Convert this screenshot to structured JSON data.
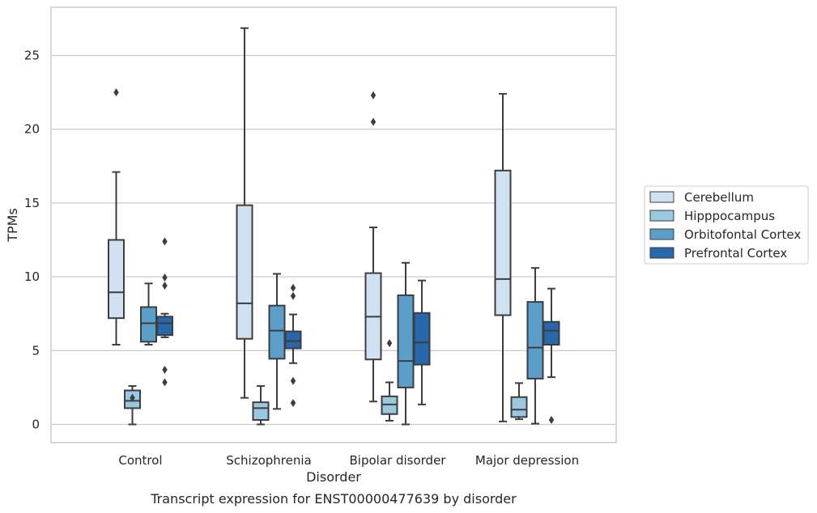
{
  "caption": "Transcript expression for ENST00000477639 by disorder",
  "chart_data": {
    "type": "box",
    "title": "",
    "xlabel": "Disorder",
    "ylabel": "TPMs",
    "ylim": [
      -1.2,
      28
    ],
    "yticks": [
      0,
      5,
      10,
      15,
      20,
      25
    ],
    "grid": "horizontal",
    "legend_position": "right",
    "categories": [
      "Control",
      "Schizophrenia",
      "Bipolar disorder",
      "Major depression"
    ],
    "series": [
      {
        "name": "Cerebellum",
        "color": "#d0e1f2",
        "boxes": [
          {
            "whisker_low": 5.4,
            "q1": 7.2,
            "median": 8.95,
            "q3": 12.5,
            "whisker_high": 17.1,
            "outliers": [
              22.5
            ]
          },
          {
            "whisker_low": 1.8,
            "q1": 5.8,
            "median": 8.2,
            "q3": 14.85,
            "whisker_high": 26.85,
            "outliers": []
          },
          {
            "whisker_low": 1.55,
            "q1": 4.4,
            "median": 7.3,
            "q3": 10.25,
            "whisker_high": 13.35,
            "outliers": [
              20.5,
              22.3
            ]
          },
          {
            "whisker_low": 0.2,
            "q1": 7.4,
            "median": 9.85,
            "q3": 17.2,
            "whisker_high": 22.4,
            "outliers": []
          }
        ]
      },
      {
        "name": "Hipppocampus",
        "color": "#9ac8e0",
        "boxes": [
          {
            "whisker_low": 0.0,
            "q1": 1.1,
            "median": 1.6,
            "q3": 2.3,
            "whisker_high": 2.6,
            "outliers": [
              1.8
            ]
          },
          {
            "whisker_low": 0.0,
            "q1": 0.3,
            "median": 1.1,
            "q3": 1.5,
            "whisker_high": 2.6,
            "outliers": []
          },
          {
            "whisker_low": 0.25,
            "q1": 0.7,
            "median": 1.35,
            "q3": 1.9,
            "whisker_high": 2.85,
            "outliers": [
              5.5
            ]
          },
          {
            "whisker_low": 0.35,
            "q1": 0.5,
            "median": 1.0,
            "q3": 1.85,
            "whisker_high": 2.8,
            "outliers": []
          }
        ]
      },
      {
        "name": "Orbitofontal Cortex",
        "color": "#5a9ec9",
        "boxes": [
          {
            "whisker_low": 5.4,
            "q1": 5.6,
            "median": 6.85,
            "q3": 7.95,
            "whisker_high": 9.55,
            "outliers": []
          },
          {
            "whisker_low": 1.05,
            "q1": 4.45,
            "median": 6.35,
            "q3": 8.05,
            "whisker_high": 10.2,
            "outliers": []
          },
          {
            "whisker_low": 0.0,
            "q1": 2.5,
            "median": 4.3,
            "q3": 8.75,
            "whisker_high": 10.95,
            "outliers": []
          },
          {
            "whisker_low": 0.05,
            "q1": 3.1,
            "median": 5.2,
            "q3": 8.3,
            "whisker_high": 10.6,
            "outliers": []
          }
        ]
      },
      {
        "name": "Prefrontal Cortex",
        "color": "#2767ad",
        "boxes": [
          {
            "whisker_low": 5.9,
            "q1": 6.05,
            "median": 6.85,
            "q3": 7.3,
            "whisker_high": 7.5,
            "outliers": [
              2.85,
              3.7,
              9.4,
              9.95,
              12.4
            ]
          },
          {
            "whisker_low": 4.15,
            "q1": 5.15,
            "median": 5.65,
            "q3": 6.3,
            "whisker_high": 7.45,
            "outliers": [
              1.45,
              2.95,
              8.7,
              9.25
            ]
          },
          {
            "whisker_low": 1.35,
            "q1": 4.05,
            "median": 5.55,
            "q3": 7.55,
            "whisker_high": 9.75,
            "outliers": []
          },
          {
            "whisker_low": 3.2,
            "q1": 5.4,
            "median": 6.35,
            "q3": 6.95,
            "whisker_high": 9.2,
            "outliers": [
              0.3
            ]
          }
        ]
      }
    ]
  }
}
